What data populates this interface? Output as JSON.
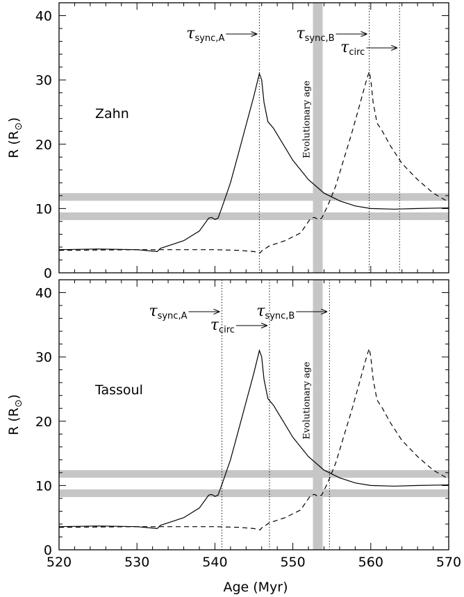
{
  "chart_data": {
    "type": "line",
    "xlabel": "Age (Myr)",
    "ylabel_main": "R (R",
    "ylabel_sub": "⊙",
    "ylabel_close": ")",
    "xlim": [
      520,
      570
    ],
    "ylim": [
      0,
      42
    ],
    "xticks": [
      520,
      530,
      540,
      550,
      560,
      570
    ],
    "yticks": [
      0,
      10,
      20,
      30,
      40
    ],
    "evolutionary_age_label": "Evolutionary age",
    "evolutionary_age": 553.2,
    "panels": [
      {
        "label": "Zahn",
        "radius_bands": [
          11.8,
          8.8
        ],
        "timescales": [
          {
            "symbol": "τ",
            "sub": "sync,A",
            "x": 545.7
          },
          {
            "symbol": "τ",
            "sub": "sync,B",
            "x": 559.8
          },
          {
            "symbol": "τ",
            "sub": "circ",
            "x": 563.7
          }
        ],
        "series": [
          {
            "style": "solid",
            "points": [
              [
                520,
                3.6
              ],
              [
                525,
                3.7
              ],
              [
                530,
                3.6
              ],
              [
                532.6,
                3.3
              ],
              [
                533,
                3.8
              ],
              [
                534,
                4.2
              ],
              [
                536,
                5.0
              ],
              [
                538,
                6.5
              ],
              [
                539.2,
                8.5
              ],
              [
                539.6,
                8.6
              ],
              [
                540,
                8.3
              ],
              [
                540.4,
                8.5
              ],
              [
                541,
                10.5
              ],
              [
                542,
                14.0
              ],
              [
                543,
                18.5
              ],
              [
                544,
                23.0
              ],
              [
                545,
                27.5
              ],
              [
                545.7,
                31.0
              ],
              [
                546,
                30.0
              ],
              [
                546.3,
                26.5
              ],
              [
                546.8,
                23.5
              ],
              [
                547.5,
                22.5
              ],
              [
                548.5,
                20.5
              ],
              [
                550,
                17.5
              ],
              [
                552,
                14.5
              ],
              [
                554,
                12.4
              ],
              [
                556,
                11.2
              ],
              [
                558,
                10.4
              ],
              [
                560,
                10.0
              ],
              [
                563,
                9.9
              ],
              [
                566,
                10.0
              ],
              [
                570,
                10.1
              ]
            ]
          },
          {
            "style": "dashed",
            "points": [
              [
                520,
                3.5
              ],
              [
                530,
                3.6
              ],
              [
                540,
                3.6
              ],
              [
                543,
                3.5
              ],
              [
                545,
                3.3
              ],
              [
                545.8,
                3.1
              ],
              [
                546,
                3.4
              ],
              [
                547,
                4.2
              ],
              [
                549,
                5.0
              ],
              [
                551,
                6.2
              ],
              [
                552.3,
                8.5
              ],
              [
                552.8,
                8.6
              ],
              [
                553.2,
                8.3
              ],
              [
                553.7,
                8.5
              ],
              [
                554.5,
                10.5
              ],
              [
                555.5,
                13.5
              ],
              [
                556.5,
                17.5
              ],
              [
                557.5,
                21.5
              ],
              [
                558.5,
                25.8
              ],
              [
                559.5,
                30.2
              ],
              [
                559.8,
                31.3
              ],
              [
                560,
                30.0
              ],
              [
                560.3,
                26.5
              ],
              [
                560.8,
                23.3
              ],
              [
                561.5,
                22.0
              ],
              [
                562.5,
                19.8
              ],
              [
                564,
                17.0
              ],
              [
                566,
                14.5
              ],
              [
                568,
                12.4
              ],
              [
                570,
                11.0
              ]
            ]
          }
        ]
      },
      {
        "label": "Tassoul",
        "radius_bands": [
          11.8,
          8.8
        ],
        "timescales": [
          {
            "symbol": "τ",
            "sub": "sync,A",
            "x": 540.9
          },
          {
            "symbol": "τ",
            "sub": "circ",
            "x": 547.0
          },
          {
            "symbol": "τ",
            "sub": "sync,B",
            "x": 554.7
          }
        ],
        "series": [
          {
            "style": "solid",
            "points": [
              [
                520,
                3.6
              ],
              [
                525,
                3.7
              ],
              [
                530,
                3.6
              ],
              [
                532.6,
                3.3
              ],
              [
                533,
                3.8
              ],
              [
                534,
                4.2
              ],
              [
                536,
                5.0
              ],
              [
                538,
                6.5
              ],
              [
                539.2,
                8.5
              ],
              [
                539.6,
                8.6
              ],
              [
                540,
                8.3
              ],
              [
                540.4,
                8.5
              ],
              [
                541,
                10.5
              ],
              [
                542,
                14.0
              ],
              [
                543,
                18.5
              ],
              [
                544,
                23.0
              ],
              [
                545,
                27.5
              ],
              [
                545.7,
                31.0
              ],
              [
                546,
                30.0
              ],
              [
                546.3,
                26.5
              ],
              [
                546.8,
                23.5
              ],
              [
                547.5,
                22.5
              ],
              [
                548.5,
                20.5
              ],
              [
                550,
                17.5
              ],
              [
                552,
                14.5
              ],
              [
                554,
                12.4
              ],
              [
                556,
                11.2
              ],
              [
                558,
                10.4
              ],
              [
                560,
                10.0
              ],
              [
                563,
                9.9
              ],
              [
                566,
                10.0
              ],
              [
                570,
                10.1
              ]
            ]
          },
          {
            "style": "dashed",
            "points": [
              [
                520,
                3.5
              ],
              [
                530,
                3.6
              ],
              [
                540,
                3.6
              ],
              [
                543,
                3.5
              ],
              [
                545,
                3.3
              ],
              [
                545.8,
                3.1
              ],
              [
                546,
                3.4
              ],
              [
                547,
                4.2
              ],
              [
                549,
                5.0
              ],
              [
                551,
                6.2
              ],
              [
                552.3,
                8.5
              ],
              [
                552.8,
                8.6
              ],
              [
                553.2,
                8.3
              ],
              [
                553.7,
                8.5
              ],
              [
                554.5,
                10.5
              ],
              [
                555.5,
                13.5
              ],
              [
                556.5,
                17.5
              ],
              [
                557.5,
                21.5
              ],
              [
                558.5,
                25.8
              ],
              [
                559.5,
                30.2
              ],
              [
                559.8,
                31.3
              ],
              [
                560,
                30.0
              ],
              [
                560.3,
                26.5
              ],
              [
                560.8,
                23.3
              ],
              [
                561.5,
                22.0
              ],
              [
                562.5,
                19.8
              ],
              [
                564,
                17.0
              ],
              [
                566,
                14.5
              ],
              [
                568,
                12.4
              ],
              [
                570,
                11.0
              ]
            ]
          }
        ]
      }
    ]
  }
}
